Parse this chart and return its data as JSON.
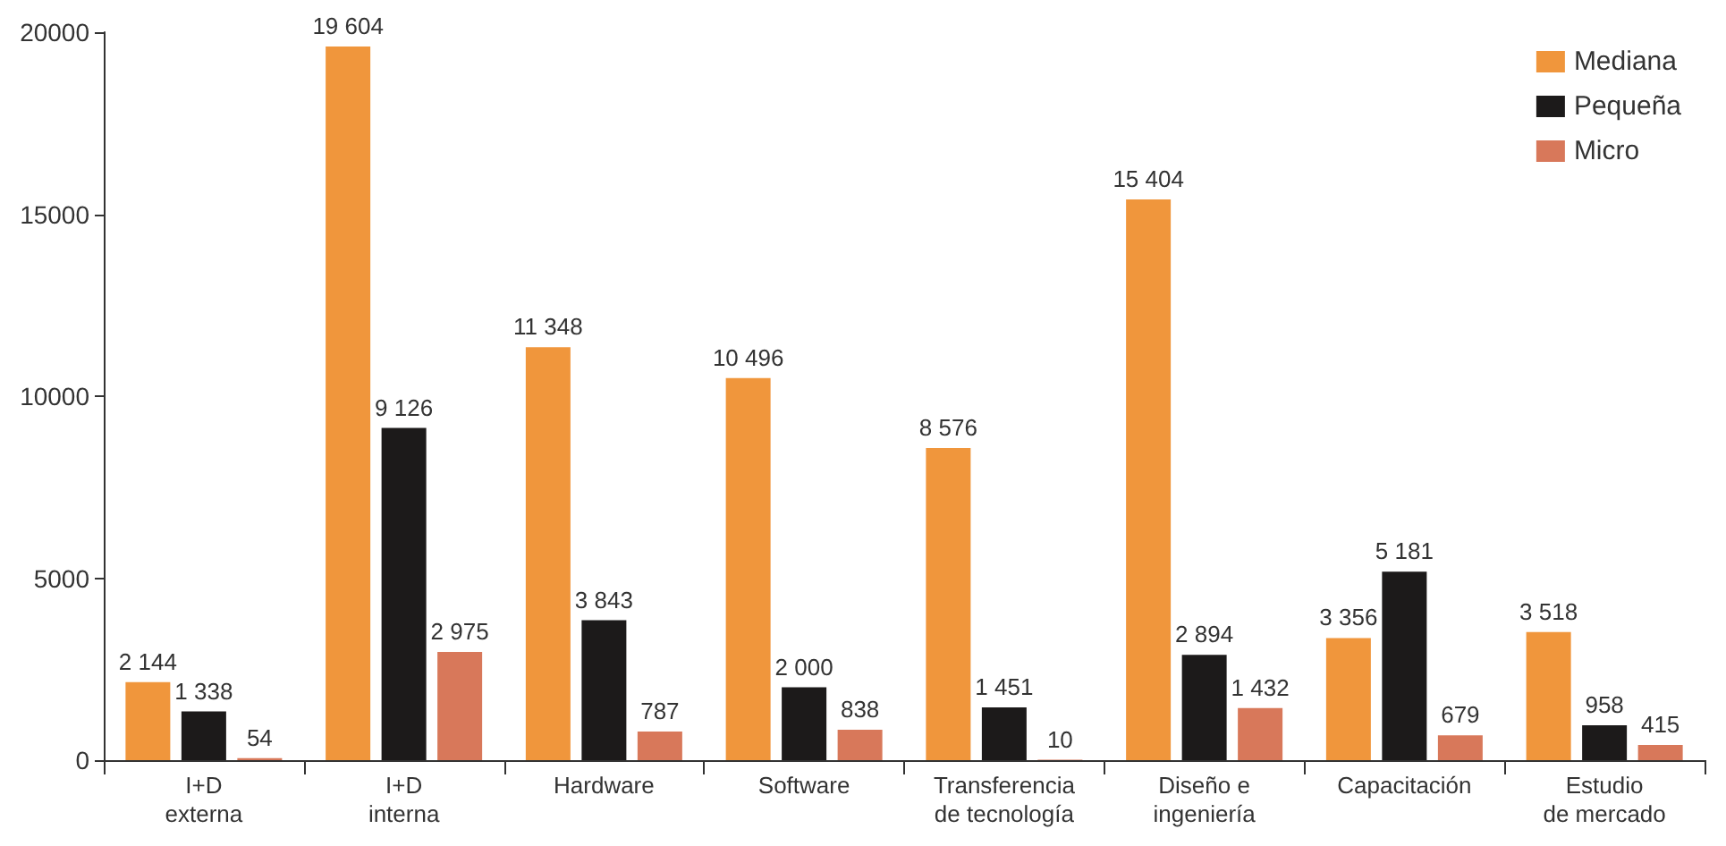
{
  "chart_data": {
    "type": "bar",
    "categories": [
      "I+D\nexterna",
      "I+D\ninterna",
      "Hardware",
      "Software",
      "Transferencia\nde tecnología",
      "Diseño e\ningeniería",
      "Capacitación",
      "Estudio\nde mercado"
    ],
    "series": [
      {
        "name": "Mediana",
        "color": "#f0963c",
        "values": [
          2144,
          19604,
          11348,
          10496,
          8576,
          15404,
          3356,
          3518
        ],
        "value_labels": [
          "2 144",
          "19 604",
          "11 348",
          "10 496",
          "8 576",
          "15 404",
          "3 356",
          "3 518"
        ]
      },
      {
        "name": "Pequeña",
        "color": "#1c1a1a",
        "values": [
          1338,
          9126,
          3843,
          2000,
          1451,
          2894,
          5181,
          958
        ],
        "value_labels": [
          "1 338",
          "9 126",
          "3 843",
          "2 000",
          "1 451",
          "2 894",
          "5 181",
          "958"
        ]
      },
      {
        "name": "Micro",
        "color": "#d8785a",
        "values": [
          54,
          2975,
          787,
          838,
          10,
          1432,
          679,
          415
        ],
        "value_labels": [
          "54",
          "2 975",
          "787",
          "838",
          "10",
          "1 432",
          "679",
          "415"
        ]
      }
    ],
    "ylim": [
      0,
      20000
    ],
    "yticks": [
      0,
      5000,
      10000,
      15000,
      20000
    ],
    "grid": false,
    "legend": "top right"
  }
}
